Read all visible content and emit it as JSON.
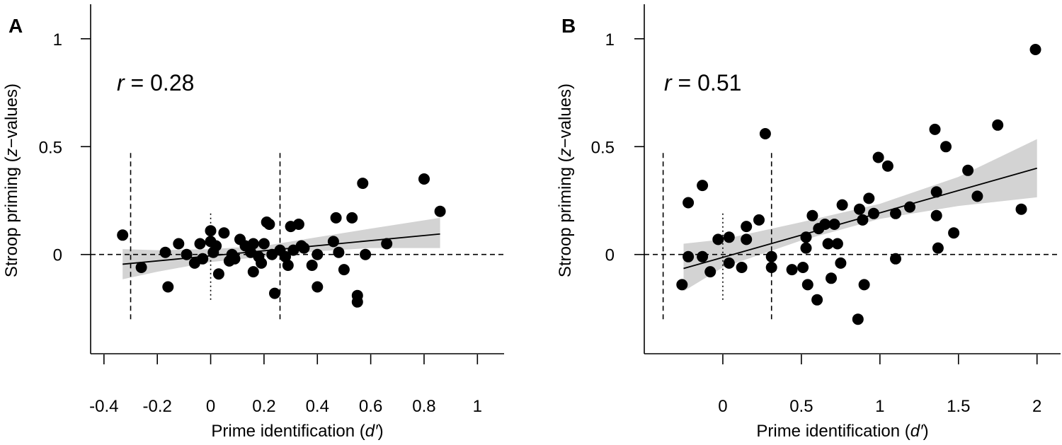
{
  "chart_data": [
    {
      "type": "scatter",
      "panel_label": "A",
      "r_symbol": "r",
      "r_text": " = 0.28",
      "xlabel_prefix": "Prime identification (",
      "xlabel_symbol": "d′",
      "xlabel_suffix": ")",
      "ylabel_prefix": "Stroop priming (",
      "ylabel_symbol": "z",
      "ylabel_suffix": "−values)",
      "xlim": [
        -0.45,
        1.1
      ],
      "ylim": [
        -0.46,
        1.16
      ],
      "xticks": [
        -0.4,
        -0.2,
        0,
        0.2,
        0.4,
        0.6,
        0.8,
        1
      ],
      "xtick_labels": [
        "-0.4",
        "-0.2",
        "0",
        "0.2",
        "0.4",
        "0.6",
        "0.8",
        "1"
      ],
      "yticks": [
        0,
        0.5,
        1
      ],
      "ytick_labels": [
        "0",
        "0.5",
        "1"
      ],
      "points": {
        "x": [
          -0.33,
          -0.26,
          -0.17,
          -0.16,
          -0.12,
          -0.09,
          -0.06,
          -0.04,
          -0.03,
          0,
          0,
          0.01,
          0.02,
          0.03,
          0.05,
          0.07,
          0.08,
          0.09,
          0.11,
          0.13,
          0.15,
          0.16,
          0.16,
          0.18,
          0.19,
          0.2,
          0.21,
          0.22,
          0.23,
          0.24,
          0.26,
          0.28,
          0.29,
          0.3,
          0.31,
          0.33,
          0.34,
          0.35,
          0.38,
          0.4,
          0.4,
          0.46,
          0.47,
          0.48,
          0.5,
          0.53,
          0.55,
          0.55,
          0.57,
          0.58,
          0.66,
          0.8,
          0.86
        ],
        "y": [
          0.09,
          -0.06,
          0.01,
          -0.15,
          0.05,
          0,
          -0.04,
          0.05,
          -0.02,
          0.11,
          0.06,
          0.01,
          0.04,
          -0.09,
          0.1,
          -0.03,
          0,
          -0.02,
          0.07,
          0.04,
          0.01,
          -0.08,
          0.05,
          -0.01,
          -0.04,
          0.05,
          0.15,
          0.14,
          0,
          -0.18,
          0.02,
          -0.01,
          -0.05,
          0.13,
          0.02,
          0.14,
          0.04,
          0.03,
          -0.05,
          -0.15,
          0,
          0.06,
          0.17,
          0.01,
          -0.07,
          0.17,
          -0.19,
          -0.22,
          0.33,
          0,
          0.05,
          0.35,
          0.2
        ]
      },
      "fit": {
        "x0": -0.33,
        "y0": -0.045,
        "x1": 0.86,
        "y1": 0.095
      },
      "ci_band": {
        "x": [
          -0.33,
          -0.2,
          0,
          0.2,
          0.4,
          0.6,
          0.86
        ],
        "lower": [
          -0.115,
          -0.08,
          -0.035,
          -0.01,
          0.015,
          0.03,
          0.03
        ],
        "upper": [
          0.025,
          0.02,
          0.025,
          0.04,
          0.08,
          0.12,
          0.17
        ]
      },
      "hline_y": 0,
      "dashed_vlines": {
        "x": [
          -0.3,
          0.26
        ],
        "y_range": [
          -0.3,
          0.48
        ]
      },
      "dotted_vline": {
        "x": 0,
        "y_range": [
          -0.21,
          0.19
        ]
      }
    },
    {
      "type": "scatter",
      "panel_label": "B",
      "r_symbol": "r",
      "r_text": " = 0.51",
      "xlabel_prefix": "Prime identification (",
      "xlabel_symbol": "d′",
      "xlabel_suffix": ")",
      "ylabel_prefix": "Stroop priming (",
      "ylabel_symbol": "z",
      "ylabel_suffix": "−values)",
      "xlim": [
        -0.5,
        2.15
      ],
      "ylim": [
        -0.46,
        1.16
      ],
      "xticks": [
        0,
        0.5,
        1,
        1.5,
        2
      ],
      "xtick_labels": [
        "0",
        "0.5",
        "1",
        "1.5",
        "2"
      ],
      "yticks": [
        0,
        0.5,
        1
      ],
      "ytick_labels": [
        "0",
        "0.5",
        "1"
      ],
      "points": {
        "x": [
          -0.26,
          -0.22,
          -0.22,
          -0.13,
          -0.13,
          -0.08,
          -0.03,
          0.04,
          0.04,
          0.12,
          0.15,
          0.15,
          0.23,
          0.27,
          0.31,
          0.31,
          0.44,
          0.51,
          0.53,
          0.53,
          0.54,
          0.57,
          0.6,
          0.61,
          0.65,
          0.67,
          0.69,
          0.71,
          0.73,
          0.75,
          0.76,
          0.86,
          0.87,
          0.89,
          0.9,
          0.93,
          0.96,
          0.99,
          1.05,
          1.1,
          1.1,
          1.19,
          1.35,
          1.36,
          1.36,
          1.37,
          1.42,
          1.47,
          1.56,
          1.62,
          1.75,
          1.9,
          1.99
        ],
        "y": [
          -0.14,
          -0.01,
          0.24,
          0.32,
          -0.01,
          -0.08,
          0.07,
          0.08,
          -0.04,
          -0.06,
          0.07,
          0.13,
          0.16,
          0.56,
          -0.01,
          -0.06,
          -0.07,
          -0.06,
          0.08,
          0.03,
          -0.14,
          0.18,
          -0.21,
          0.12,
          0.14,
          0.05,
          -0.11,
          0.14,
          0.05,
          -0.04,
          0.23,
          -0.3,
          0.21,
          0.16,
          -0.14,
          0.26,
          0.19,
          0.45,
          0.41,
          0.19,
          -0.02,
          0.22,
          0.58,
          0.29,
          0.18,
          0.03,
          0.5,
          0.1,
          0.39,
          0.27,
          0.6,
          0.21,
          0.95
        ]
      },
      "fit": {
        "x0": -0.25,
        "y0": -0.065,
        "x1": 2.0,
        "y1": 0.4
      },
      "ci_band": {
        "x": [
          -0.25,
          0,
          0.5,
          1,
          1.5,
          2
        ],
        "lower": [
          -0.17,
          -0.06,
          0.065,
          0.165,
          0.225,
          0.265
        ],
        "upper": [
          0.05,
          0.07,
          0.15,
          0.235,
          0.36,
          0.535
        ]
      },
      "hline_y": 0,
      "dashed_vlines": {
        "x": [
          -0.38,
          0.31
        ],
        "y_range": [
          -0.3,
          0.48
        ]
      },
      "dotted_vline": {
        "x": 0,
        "y_range": [
          -0.21,
          0.19
        ]
      }
    }
  ]
}
